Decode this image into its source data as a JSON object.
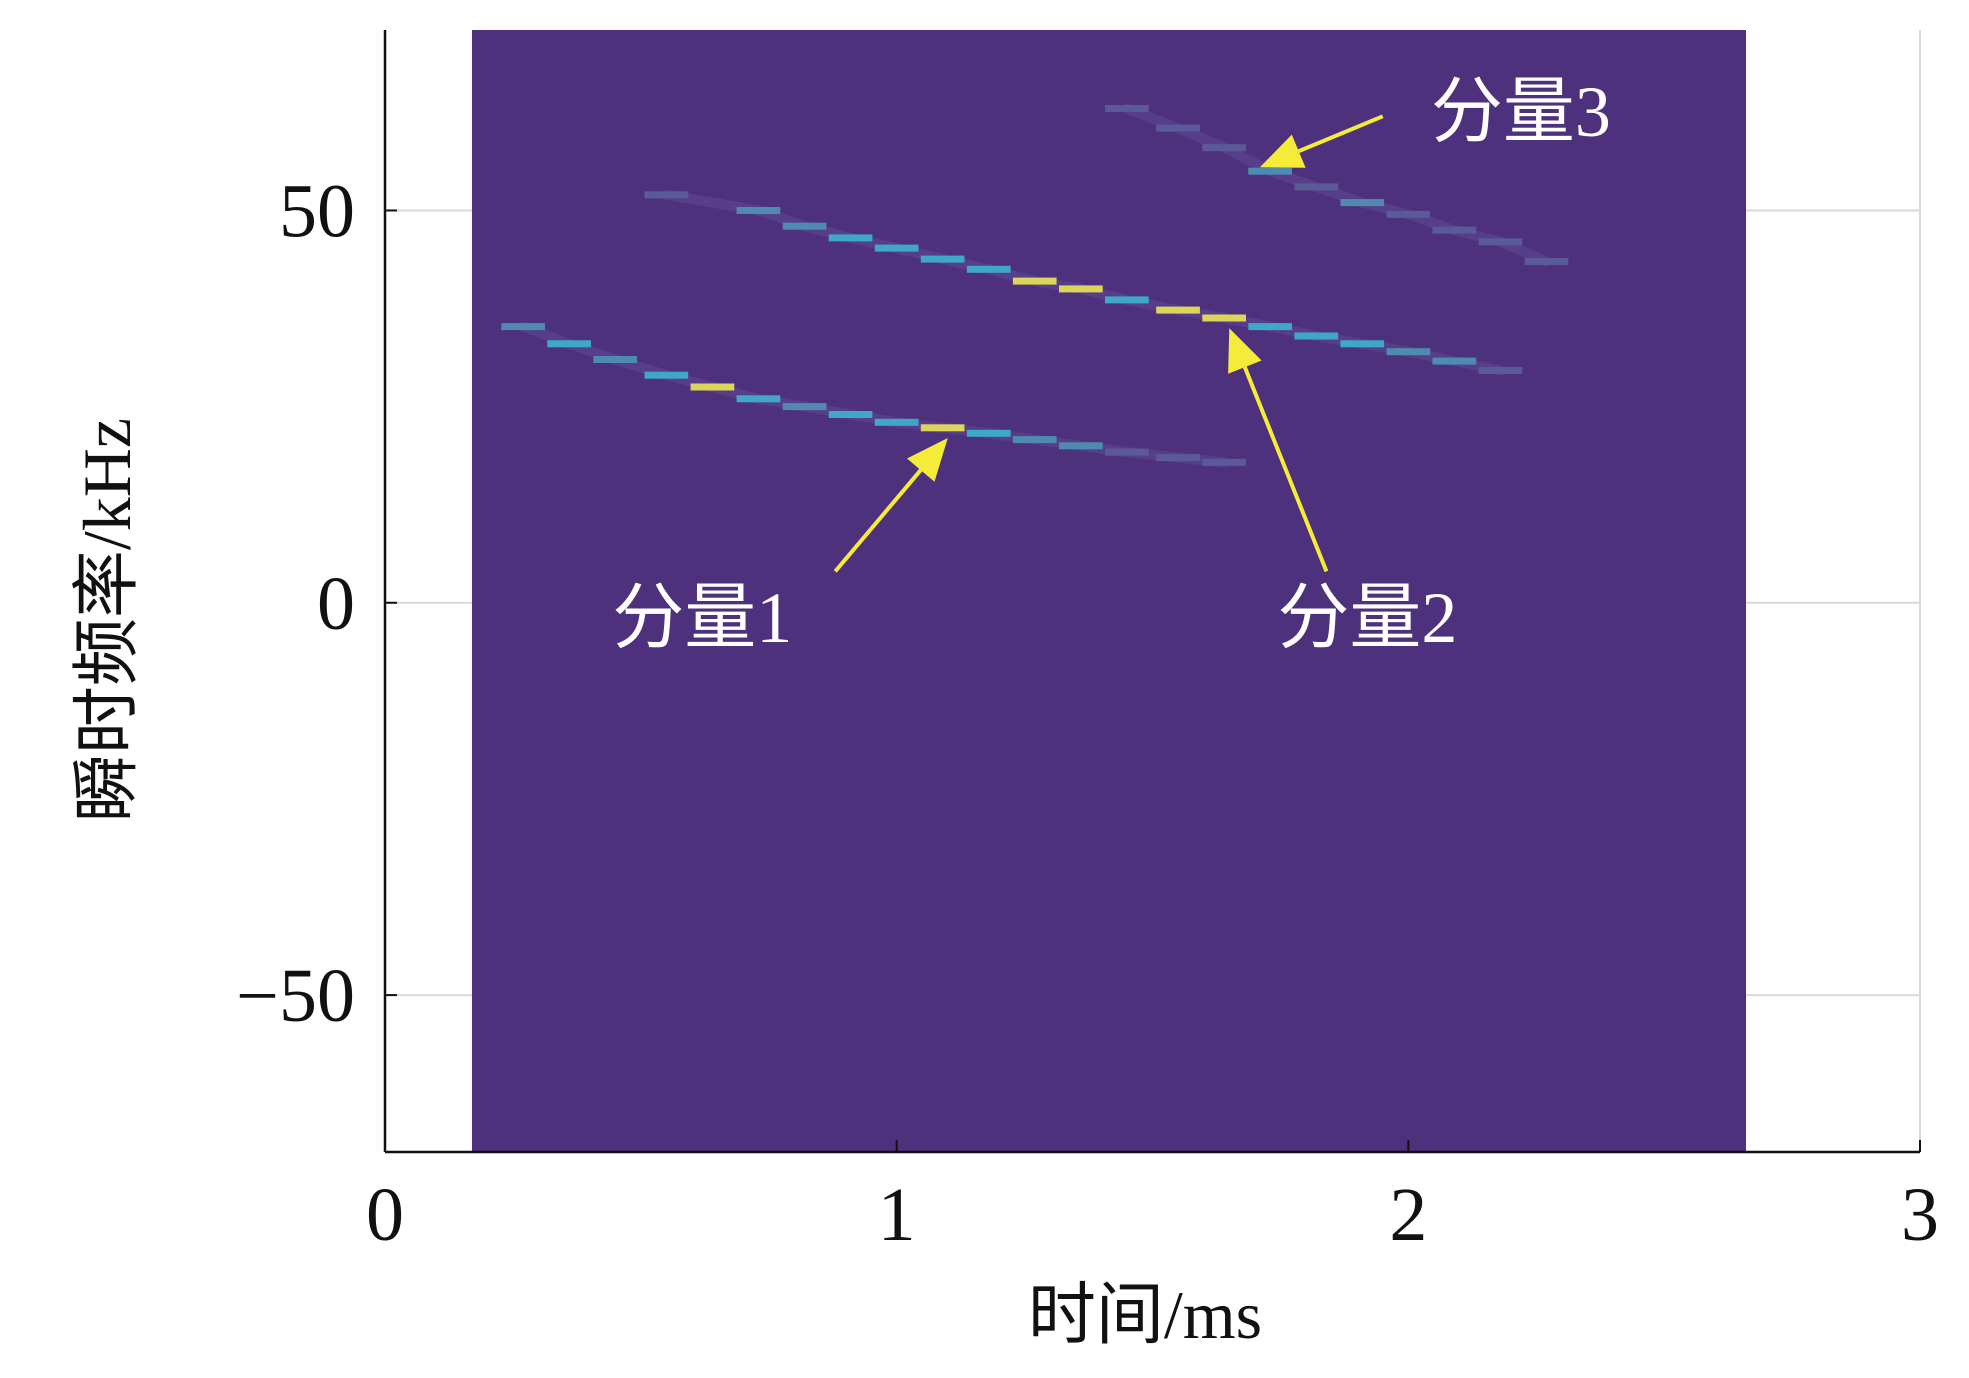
{
  "chart_data": {
    "type": "heatmap",
    "title": "",
    "xlabel": "时间/ms",
    "ylabel": "瞬时频率/kHz",
    "xlim": [
      0,
      3
    ],
    "ylim": [
      -70,
      73
    ],
    "x_ticks": [
      0,
      1,
      2,
      3
    ],
    "x_tick_labels": [
      "0",
      "1",
      "2",
      "3"
    ],
    "y_ticks": [
      50,
      0,
      -50
    ],
    "y_tick_labels": [
      "50",
      "0",
      "−50"
    ],
    "grid": true,
    "data_extent_x": [
      0.17,
      2.66
    ],
    "background_color": "#4e317c",
    "colors": {
      "bright": "#dcd55a",
      "mid": "#3fa8c8",
      "dim": "#4f8ab0",
      "faint": "#5b5a98",
      "annotation_arrow": "#f5ec3a",
      "annotation_text": "#ffffff"
    },
    "series": [
      {
        "name": "分量1",
        "points": [
          {
            "t": 0.27,
            "f": 35.2,
            "level": "dim"
          },
          {
            "t": 0.36,
            "f": 33.0,
            "level": "mid"
          },
          {
            "t": 0.45,
            "f": 31.0,
            "level": "dim"
          },
          {
            "t": 0.55,
            "f": 29.0,
            "level": "mid"
          },
          {
            "t": 0.64,
            "f": 27.5,
            "level": "bright"
          },
          {
            "t": 0.73,
            "f": 26.0,
            "level": "mid"
          },
          {
            "t": 0.82,
            "f": 25.0,
            "level": "dim"
          },
          {
            "t": 0.91,
            "f": 24.0,
            "level": "mid"
          },
          {
            "t": 1.0,
            "f": 23.0,
            "level": "mid"
          },
          {
            "t": 1.09,
            "f": 22.3,
            "level": "bright"
          },
          {
            "t": 1.18,
            "f": 21.6,
            "level": "mid"
          },
          {
            "t": 1.27,
            "f": 20.8,
            "level": "dim"
          },
          {
            "t": 1.36,
            "f": 20.0,
            "level": "dim"
          },
          {
            "t": 1.45,
            "f": 19.2,
            "level": "faint"
          },
          {
            "t": 1.55,
            "f": 18.5,
            "level": "faint"
          },
          {
            "t": 1.64,
            "f": 17.9,
            "level": "faint"
          }
        ]
      },
      {
        "name": "分量2",
        "points": [
          {
            "t": 0.55,
            "f": 52.0,
            "level": "faint"
          },
          {
            "t": 0.73,
            "f": 50.0,
            "level": "dim"
          },
          {
            "t": 0.82,
            "f": 48.0,
            "level": "dim"
          },
          {
            "t": 0.91,
            "f": 46.5,
            "level": "mid"
          },
          {
            "t": 1.0,
            "f": 45.2,
            "level": "mid"
          },
          {
            "t": 1.09,
            "f": 43.8,
            "level": "mid"
          },
          {
            "t": 1.18,
            "f": 42.5,
            "level": "mid"
          },
          {
            "t": 1.27,
            "f": 41.0,
            "level": "bright"
          },
          {
            "t": 1.36,
            "f": 40.0,
            "level": "bright"
          },
          {
            "t": 1.45,
            "f": 38.6,
            "level": "mid"
          },
          {
            "t": 1.55,
            "f": 37.3,
            "level": "bright"
          },
          {
            "t": 1.64,
            "f": 36.3,
            "level": "bright"
          },
          {
            "t": 1.73,
            "f": 35.2,
            "level": "mid"
          },
          {
            "t": 1.82,
            "f": 34.0,
            "level": "mid"
          },
          {
            "t": 1.91,
            "f": 33.0,
            "level": "mid"
          },
          {
            "t": 2.0,
            "f": 32.0,
            "level": "dim"
          },
          {
            "t": 2.09,
            "f": 30.8,
            "level": "dim"
          },
          {
            "t": 2.18,
            "f": 29.6,
            "level": "faint"
          }
        ]
      },
      {
        "name": "分量3",
        "points": [
          {
            "t": 1.45,
            "f": 63.0,
            "level": "faint"
          },
          {
            "t": 1.55,
            "f": 60.5,
            "level": "faint"
          },
          {
            "t": 1.64,
            "f": 58.0,
            "level": "faint"
          },
          {
            "t": 1.73,
            "f": 55.0,
            "level": "dim"
          },
          {
            "t": 1.82,
            "f": 53.0,
            "level": "faint"
          },
          {
            "t": 1.91,
            "f": 51.0,
            "level": "dim"
          },
          {
            "t": 2.0,
            "f": 49.5,
            "level": "faint"
          },
          {
            "t": 2.09,
            "f": 47.5,
            "level": "faint"
          },
          {
            "t": 2.18,
            "f": 46.0,
            "level": "faint"
          },
          {
            "t": 2.27,
            "f": 43.5,
            "level": "faint"
          }
        ]
      }
    ],
    "annotations": [
      {
        "text": "分量1",
        "text_at": [
          0.62,
          -5
        ],
        "arrow_from": [
          0.88,
          4
        ],
        "arrow_to": [
          1.1,
          21
        ]
      },
      {
        "text": "分量2",
        "text_at": [
          1.92,
          -5
        ],
        "arrow_from": [
          1.84,
          4
        ],
        "arrow_to": [
          1.65,
          35
        ]
      },
      {
        "text": "分量3",
        "text_at": [
          2.22,
          59.5
        ],
        "arrow_from": [
          1.95,
          62
        ],
        "arrow_to": [
          1.71,
          55.5
        ]
      }
    ]
  }
}
